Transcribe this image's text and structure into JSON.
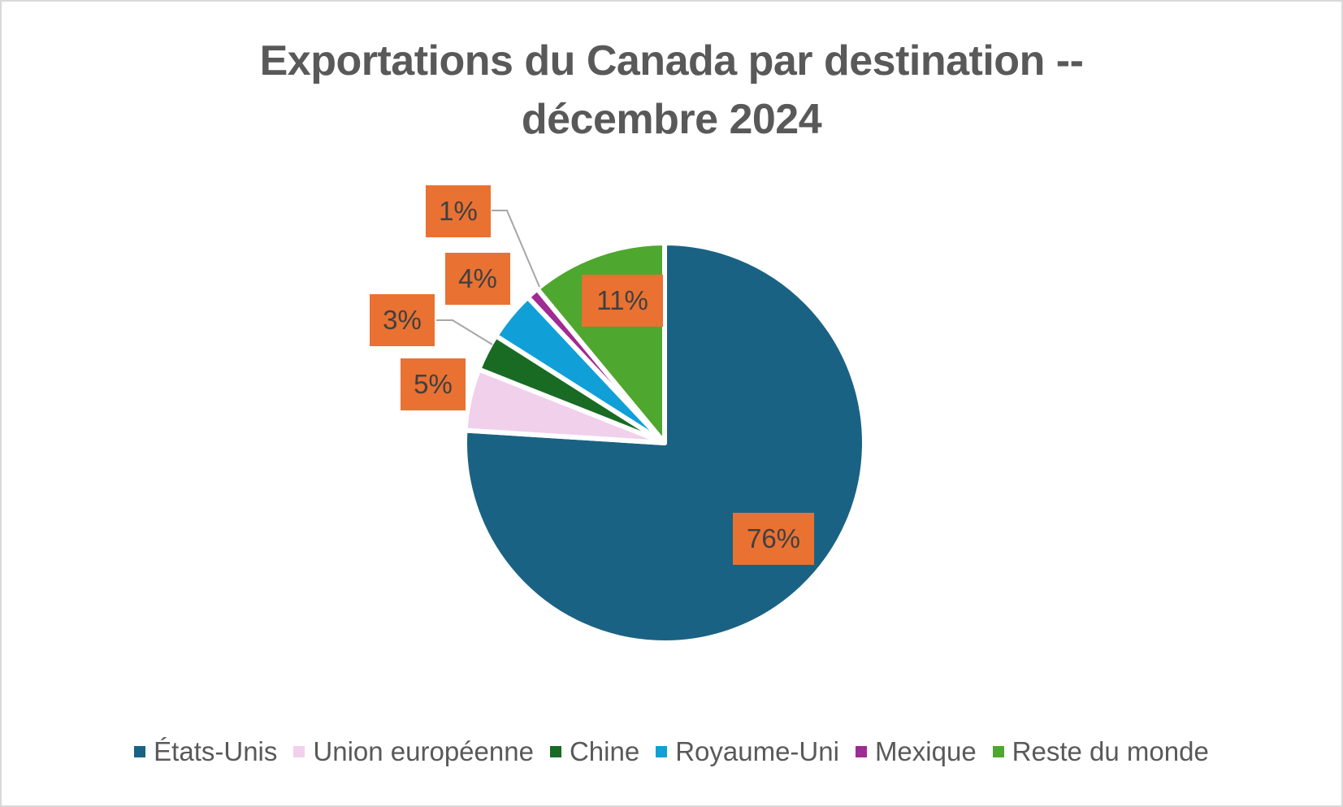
{
  "chart_data": {
    "type": "pie",
    "title": "Exportations du Canada par destination -- décembre 2024",
    "title_lines": [
      "Exportations du Canada par destination --",
      "décembre 2024"
    ],
    "categories": [
      "États-Unis",
      "Union européenne",
      "Chine",
      "Royaume-Uni",
      "Mexique",
      "Reste du monde"
    ],
    "values": [
      76,
      5,
      3,
      4,
      1,
      11
    ],
    "labels": [
      "76%",
      "5%",
      "3%",
      "4%",
      "1%",
      "11%"
    ],
    "colors": [
      "#1a6283",
      "#f1d0ec",
      "#196b24",
      "#119fd8",
      "#a02b93",
      "#4ea72e"
    ],
    "label_color": "#e97132",
    "start_angle_deg": 0,
    "direction": "clockwise",
    "legend_position": "bottom"
  },
  "legend": [
    {
      "label": "États-Unis",
      "color": "#1a6283"
    },
    {
      "label": "Union européenne",
      "color": "#f1d0ec"
    },
    {
      "label": "Chine",
      "color": "#196b24"
    },
    {
      "label": "Royaume-Uni",
      "color": "#119fd8"
    },
    {
      "label": "Mexique",
      "color": "#a02b93"
    },
    {
      "label": "Reste du monde",
      "color": "#4ea72e"
    }
  ]
}
